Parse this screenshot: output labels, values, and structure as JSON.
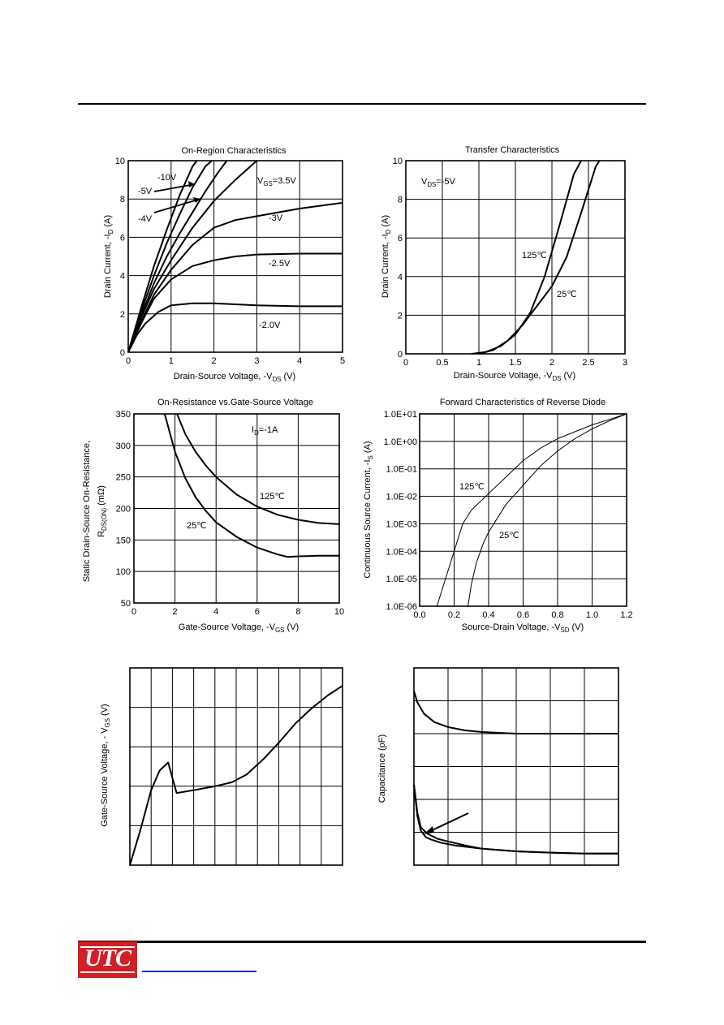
{
  "chart_data": [
    {
      "id": "on_region",
      "type": "line",
      "title": "On-Region Characteristics",
      "xlabel": "Drain-Source Voltage, -V_DS (V)",
      "ylabel": "Drain Current, -I_D (A)",
      "xlim": [
        0,
        5
      ],
      "ylim": [
        0,
        10
      ],
      "xticks": [
        0,
        1,
        2,
        3,
        4,
        5
      ],
      "yticks": [
        0,
        2,
        4,
        6,
        8,
        10
      ],
      "grid": true,
      "annotations": [
        "-10V",
        "-5V",
        "-4V",
        "V_GS=3.5V",
        "-3V",
        "-2.5V",
        "-2.0V"
      ],
      "series": [
        {
          "name": "-10V",
          "x": [
            0,
            0.3,
            0.6,
            0.9,
            1.2,
            1.5,
            1.6
          ],
          "y": [
            0,
            2.3,
            4.5,
            6.4,
            8.2,
            9.7,
            10
          ]
        },
        {
          "name": "-5V",
          "x": [
            0,
            0.3,
            0.6,
            0.9,
            1.2,
            1.5,
            1.8,
            1.95
          ],
          "y": [
            0,
            2.1,
            4.0,
            5.7,
            7.2,
            8.6,
            9.7,
            10
          ]
        },
        {
          "name": "-4V",
          "x": [
            0,
            0.3,
            0.6,
            0.9,
            1.2,
            1.5,
            1.8,
            2.1,
            2.3
          ],
          "y": [
            0,
            1.9,
            3.6,
            5.0,
            6.2,
            7.3,
            8.4,
            9.4,
            10
          ]
        },
        {
          "name": "V_GS=3.5V",
          "x": [
            0,
            0.3,
            0.6,
            1.0,
            1.5,
            2.0,
            2.5,
            3.0
          ],
          "y": [
            0,
            1.8,
            3.3,
            4.8,
            6.5,
            7.9,
            9.0,
            10
          ]
        },
        {
          "name": "-3V",
          "x": [
            0,
            0.3,
            0.6,
            1.0,
            1.5,
            2.0,
            2.5,
            3.0,
            4.0,
            5.0
          ],
          "y": [
            0,
            1.6,
            3.0,
            4.3,
            5.6,
            6.5,
            6.9,
            7.1,
            7.5,
            7.8
          ]
        },
        {
          "name": "-2.5V",
          "x": [
            0,
            0.3,
            0.6,
            1.0,
            1.5,
            2.0,
            2.5,
            3.0,
            4.0,
            5.0
          ],
          "y": [
            0,
            1.5,
            2.8,
            3.8,
            4.5,
            4.8,
            5.0,
            5.1,
            5.15,
            5.15
          ]
        },
        {
          "name": "-2.0V",
          "x": [
            0,
            0.2,
            0.4,
            0.7,
            1.0,
            1.5,
            2.0,
            3.0,
            4.0,
            5.0
          ],
          "y": [
            0,
            0.9,
            1.5,
            2.1,
            2.45,
            2.55,
            2.55,
            2.45,
            2.4,
            2.4
          ]
        }
      ]
    },
    {
      "id": "transfer",
      "type": "line",
      "title": "Transfer Characteristics",
      "xlabel": "Drain-Source Voltage, -V_DS (V)",
      "ylabel": "Drain Current, -I_D (A)",
      "xlim": [
        0,
        3
      ],
      "ylim": [
        0,
        10
      ],
      "xticks": [
        0,
        0.5,
        1,
        1.5,
        2,
        2.5,
        3
      ],
      "yticks": [
        0,
        2,
        4,
        6,
        8,
        10
      ],
      "grid": true,
      "annotations": [
        "V_DS=-5V",
        "125℃",
        "25℃"
      ],
      "series": [
        {
          "name": "125℃",
          "x": [
            0.9,
            1.1,
            1.3,
            1.5,
            1.7,
            1.9,
            2.1,
            2.3,
            2.4
          ],
          "y": [
            0,
            0.1,
            0.4,
            1.0,
            2.1,
            4.0,
            6.6,
            9.3,
            10
          ]
        },
        {
          "name": "25℃",
          "x": [
            1.0,
            1.2,
            1.4,
            1.6,
            1.8,
            2.0,
            2.2,
            2.4,
            2.6,
            2.65
          ],
          "y": [
            0,
            0.2,
            0.7,
            1.5,
            2.5,
            3.5,
            5.0,
            7.3,
            9.7,
            10
          ]
        }
      ]
    },
    {
      "id": "on_resistance",
      "type": "line",
      "title": "On-Resistance vs.Gate-Source Voltage",
      "xlabel": "Gate-Source Voltage, -V_GS (V)",
      "ylabel": "Static Drain-Source On-Resistance, R_DS(ON) (mΩ)",
      "xlim": [
        0,
        10
      ],
      "ylim": [
        50,
        350
      ],
      "xticks": [
        0,
        2,
        4,
        6,
        8,
        10
      ],
      "yticks": [
        50,
        100,
        150,
        200,
        250,
        300,
        350
      ],
      "grid": true,
      "annotations": [
        "I_D=-1A",
        "125℃",
        "25℃"
      ],
      "series": [
        {
          "name": "125℃",
          "x": [
            2.1,
            2.5,
            3.0,
            3.5,
            4.0,
            5.0,
            6.0,
            7.0,
            8.0,
            9.0,
            10.0
          ],
          "y": [
            350,
            318,
            290,
            268,
            250,
            222,
            203,
            190,
            182,
            177,
            175
          ]
        },
        {
          "name": "25℃",
          "x": [
            1.5,
            2.0,
            2.5,
            3.0,
            3.5,
            4.0,
            5.0,
            6.0,
            7.0,
            7.5,
            8.0,
            9.0,
            10.0
          ],
          "y": [
            350,
            290,
            248,
            218,
            196,
            178,
            155,
            138,
            127,
            123,
            124,
            125,
            125
          ]
        }
      ]
    },
    {
      "id": "reverse_diode",
      "type": "line",
      "title": "Forward Characteristics of Reverse Diode",
      "xlabel": "Source-Drain Voltage, -V_SD (V)",
      "ylabel": "Continuous Source Current, -I_S (A)",
      "xlim": [
        0,
        1.2
      ],
      "ylim_log10": [
        -6,
        1
      ],
      "xticks": [
        0.0,
        0.2,
        0.4,
        0.6,
        0.8,
        1.0,
        1.2
      ],
      "ytick_labels": [
        "1.0E-06",
        "1.0E-05",
        "1.0E-04",
        "1.0E-03",
        "1.0E-02",
        "1.0E-01",
        "1.0E+00",
        "1.0E+01"
      ],
      "scale_y": "log",
      "grid": true,
      "annotations": [
        "125℃",
        "25℃"
      ],
      "series": [
        {
          "name": "125℃",
          "x": [
            0.1,
            0.15,
            0.2,
            0.25,
            0.3,
            0.4,
            0.5,
            0.6,
            0.7,
            0.8,
            0.9,
            1.0,
            1.1,
            1.2
          ],
          "y_log10": [
            -6,
            -5,
            -4,
            -3,
            -2.5,
            -1.9,
            -1.3,
            -0.7,
            -0.25,
            0.1,
            0.35,
            0.6,
            0.8,
            1.0
          ]
        },
        {
          "name": "25℃",
          "x": [
            0.28,
            0.3,
            0.33,
            0.37,
            0.4,
            0.45,
            0.5,
            0.6,
            0.7,
            0.8,
            0.9,
            1.0,
            1.1,
            1.2
          ],
          "y_log10": [
            -6,
            -5.2,
            -4.4,
            -3.7,
            -3.3,
            -2.8,
            -2.3,
            -1.6,
            -0.9,
            -0.35,
            0.1,
            0.45,
            0.75,
            1.0
          ]
        }
      ]
    },
    {
      "id": "gate_charge",
      "type": "line",
      "title": "",
      "xlabel": "",
      "ylabel": "Gate-Source Voltage, - V_GS (V)",
      "xlim": [
        0,
        10
      ],
      "ylim": [
        0,
        5
      ],
      "grid": true,
      "xgrid": 10,
      "ygrid": 5,
      "series": [
        {
          "x": [
            0,
            0.5,
            1.0,
            1.4,
            1.8,
            2.2,
            3.0,
            4.0,
            4.8,
            5.5,
            6.3,
            7.0,
            7.8,
            8.6,
            9.3,
            10.0
          ],
          "y": [
            0,
            0.9,
            1.9,
            2.4,
            2.6,
            1.83,
            1.9,
            2.0,
            2.1,
            2.3,
            2.7,
            3.1,
            3.6,
            4.0,
            4.3,
            4.55
          ]
        }
      ]
    },
    {
      "id": "capacitance",
      "type": "line",
      "title": "",
      "xlabel": "",
      "ylabel": "Capacitance (pF)",
      "xlim": [
        0,
        6
      ],
      "ylim": [
        0,
        6
      ],
      "grid": true,
      "xgrid": 6,
      "ygrid": 6,
      "series": [
        {
          "x": [
            0,
            0.1,
            0.3,
            0.6,
            1.0,
            1.5,
            2.0,
            3.0,
            4.0,
            5.0,
            6.0
          ],
          "y": [
            5.3,
            4.95,
            4.6,
            4.35,
            4.2,
            4.1,
            4.05,
            4.0,
            4.0,
            4.0,
            4.0
          ]
        },
        {
          "x": [
            0,
            0.1,
            0.2,
            0.4,
            0.7,
            1.0,
            1.5,
            2.0,
            3.0,
            4.0,
            5.0,
            6.0
          ],
          "y": [
            2.45,
            1.6,
            1.15,
            0.95,
            0.8,
            0.72,
            0.6,
            0.5,
            0.42,
            0.38,
            0.35,
            0.35
          ]
        },
        {
          "x": [
            0,
            0.1,
            0.2,
            0.35,
            0.5,
            0.8,
            1.2,
            2.0,
            3.0,
            4.0,
            5.0,
            6.0
          ],
          "y": [
            2.45,
            1.5,
            1.05,
            0.85,
            0.78,
            0.68,
            0.6,
            0.5,
            0.42,
            0.38,
            0.35,
            0.35
          ]
        }
      ]
    }
  ],
  "footer": {
    "logo_text": "UTC"
  }
}
